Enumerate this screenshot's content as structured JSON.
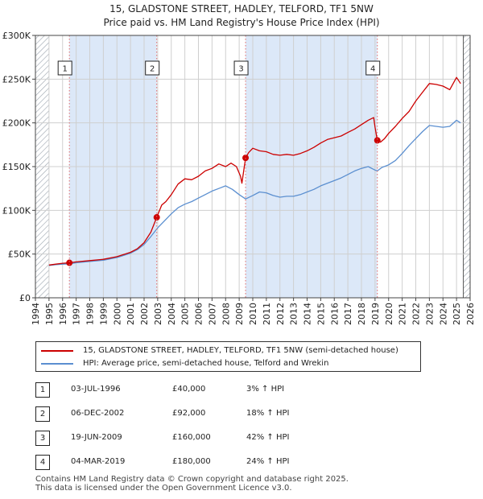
{
  "title_line1": "15, GLADSTONE STREET, HADLEY, TELFORD, TF1 5NW",
  "title_line2": "Price paid vs. HM Land Registry's House Price Index (HPI)",
  "colors": {
    "price_line": "#cc0000",
    "hpi_line": "#5b8fd0",
    "shade": "#dce8f8",
    "hatch": "#9aa3ad",
    "marker_line": "#e06a6a",
    "grid": "#cfcfcf"
  },
  "chart_data": {
    "type": "line",
    "title": "15, GLADSTONE STREET, HADLEY, TELFORD, TF1 5NW — Price paid vs. HM Land Registry's House Price Index (HPI)",
    "xlim": [
      1994,
      2026
    ],
    "ylim": [
      0,
      300000
    ],
    "x_ticks": [
      "1994",
      "1995",
      "1996",
      "1997",
      "1998",
      "1999",
      "2000",
      "2001",
      "2002",
      "2003",
      "2004",
      "2005",
      "2006",
      "2007",
      "2008",
      "2009",
      "2010",
      "2011",
      "2012",
      "2013",
      "2014",
      "2015",
      "2016",
      "2017",
      "2018",
      "2019",
      "2020",
      "2021",
      "2022",
      "2023",
      "2024",
      "2025",
      "2026"
    ],
    "y_ticks": [
      {
        "value": 0,
        "label": "£0"
      },
      {
        "value": 50000,
        "label": "£50K"
      },
      {
        "value": 100000,
        "label": "£100K"
      },
      {
        "value": 150000,
        "label": "£150K"
      },
      {
        "value": 200000,
        "label": "£200K"
      },
      {
        "value": 250000,
        "label": "£250K"
      },
      {
        "value": 300000,
        "label": "£300K"
      }
    ],
    "data_start": 1995.0,
    "data_end": 2025.5,
    "shaded_spans": [
      [
        1996.5,
        2002.93
      ],
      [
        2009.47,
        2019.17
      ]
    ],
    "series": [
      {
        "name": "15, GLADSTONE STREET, HADLEY, TELFORD, TF1 5NW (semi-detached house)",
        "x": [
          1995.0,
          1995.5,
          1996.0,
          1996.5,
          1997.0,
          1998.0,
          1999.0,
          2000.0,
          2001.0,
          2001.5,
          2002.0,
          2002.5,
          2002.93,
          2003.3,
          2003.6,
          2004.0,
          2004.5,
          2005.0,
          2005.5,
          2006.0,
          2006.5,
          2007.0,
          2007.5,
          2008.0,
          2008.4,
          2008.8,
          2009.1,
          2009.2,
          2009.47,
          2009.7,
          2010.0,
          2010.5,
          2011.0,
          2011.5,
          2012.0,
          2012.5,
          2013.0,
          2013.5,
          2014.0,
          2014.5,
          2015.0,
          2015.5,
          2016.0,
          2016.5,
          2017.0,
          2017.5,
          2018.0,
          2018.5,
          2018.9,
          2019.0,
          2019.17,
          2019.4,
          2019.7,
          2020.0,
          2020.5,
          2021.0,
          2021.5,
          2022.0,
          2022.5,
          2023.0,
          2023.5,
          2024.0,
          2024.5,
          2025.0,
          2025.3
        ],
        "values": [
          37500,
          38500,
          39500,
          40000,
          41000,
          42500,
          44000,
          47000,
          52000,
          56000,
          63000,
          75000,
          92000,
          106000,
          110000,
          118000,
          130000,
          136000,
          135000,
          139000,
          145000,
          148000,
          153000,
          150000,
          154000,
          150000,
          139000,
          131000,
          160000,
          166000,
          171000,
          168000,
          167000,
          164000,
          163000,
          164000,
          163000,
          165000,
          168000,
          172000,
          177000,
          181000,
          183000,
          185000,
          189000,
          193000,
          198000,
          203000,
          206000,
          195000,
          180000,
          178000,
          182000,
          188000,
          196000,
          205000,
          213000,
          225000,
          235000,
          245000,
          244000,
          242000,
          238000,
          252000,
          245000
        ]
      },
      {
        "name": "HPI: Average price, semi-detached house, Telford and Wrekin",
        "x": [
          1995.0,
          1995.5,
          1996.0,
          1996.5,
          1997.0,
          1998.0,
          1999.0,
          2000.0,
          2001.0,
          2001.5,
          2002.0,
          2002.5,
          2003.0,
          2003.5,
          2004.0,
          2004.5,
          2005.0,
          2005.5,
          2006.0,
          2006.5,
          2007.0,
          2007.5,
          2008.0,
          2008.5,
          2009.0,
          2009.47,
          2010.0,
          2010.5,
          2011.0,
          2011.5,
          2012.0,
          2012.5,
          2013.0,
          2013.5,
          2014.0,
          2014.5,
          2015.0,
          2015.5,
          2016.0,
          2016.5,
          2017.0,
          2017.5,
          2018.0,
          2018.5,
          2019.0,
          2019.17,
          2019.5,
          2020.0,
          2020.5,
          2021.0,
          2021.5,
          2022.0,
          2022.5,
          2023.0,
          2023.5,
          2024.0,
          2024.5,
          2025.0,
          2025.3
        ],
        "values": [
          37000,
          37800,
          38500,
          38800,
          40000,
          41500,
          43000,
          46000,
          51000,
          55000,
          61000,
          70000,
          80000,
          88000,
          96000,
          103000,
          107000,
          110000,
          114000,
          118000,
          122000,
          125000,
          128000,
          124000,
          118000,
          113000,
          117000,
          121000,
          120000,
          117000,
          115000,
          116000,
          116000,
          118000,
          121000,
          124000,
          128000,
          131000,
          134000,
          137000,
          141000,
          145000,
          148000,
          150000,
          146000,
          145000,
          149000,
          152000,
          157000,
          165000,
          174000,
          182000,
          190000,
          197000,
          196000,
          195000,
          196000,
          203000,
          200000
        ]
      }
    ],
    "sales": [
      {
        "num": "1",
        "x": 1996.5,
        "price": 40000
      },
      {
        "num": "2",
        "x": 2002.93,
        "price": 92000
      },
      {
        "num": "3",
        "x": 2009.47,
        "price": 160000
      },
      {
        "num": "4",
        "x": 2019.17,
        "price": 180000
      }
    ]
  },
  "legend": {
    "price_label": "15, GLADSTONE STREET, HADLEY, TELFORD, TF1 5NW (semi-detached house)",
    "hpi_label": "HPI: Average price, semi-detached house, Telford and Wrekin"
  },
  "transactions": [
    {
      "num": "1",
      "date": "03-JUL-1996",
      "price": "£40,000",
      "hpi": "3% ↑ HPI"
    },
    {
      "num": "2",
      "date": "06-DEC-2002",
      "price": "£92,000",
      "hpi": "18% ↑ HPI"
    },
    {
      "num": "3",
      "date": "19-JUN-2009",
      "price": "£160,000",
      "hpi": "42% ↑ HPI"
    },
    {
      "num": "4",
      "date": "04-MAR-2019",
      "price": "£180,000",
      "hpi": "24% ↑ HPI"
    }
  ],
  "footer_line1": "Contains HM Land Registry data © Crown copyright and database right 2025.",
  "footer_line2": "This data is licensed under the Open Government Licence v3.0."
}
